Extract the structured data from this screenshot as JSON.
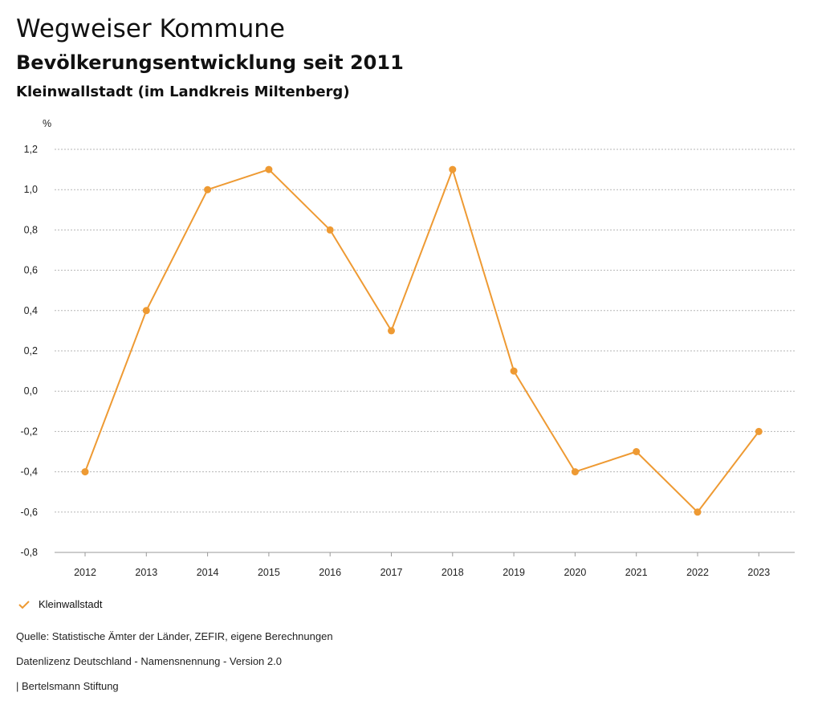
{
  "header": {
    "title": "Wegweiser Kommune",
    "subtitle": "Bevölkerungsentwicklung seit 2011",
    "region": "Kleinwallstadt (im Landkreis Miltenberg)"
  },
  "chart_data": {
    "type": "line",
    "ylabel": "%",
    "xlabel": "",
    "categories": [
      "2012",
      "2013",
      "2014",
      "2015",
      "2016",
      "2017",
      "2018",
      "2019",
      "2020",
      "2021",
      "2022",
      "2023"
    ],
    "series": [
      {
        "name": "Kleinwallstadt",
        "color": "#ee9a33",
        "values": [
          -0.4,
          0.4,
          1.0,
          1.1,
          0.8,
          0.3,
          1.1,
          0.1,
          -0.4,
          -0.3,
          -0.6,
          -0.2
        ]
      }
    ],
    "ylim": [
      -0.8,
      1.2
    ],
    "yticks": [
      1.2,
      1.0,
      0.8,
      0.6,
      0.4,
      0.2,
      0.0,
      -0.2,
      -0.4,
      -0.6,
      -0.8
    ],
    "ytick_labels": [
      "1,2",
      "1,0",
      "0,8",
      "0,6",
      "0,4",
      "0,2",
      "0,0",
      "-0,2",
      "-0,4",
      "-0,6",
      "-0,8"
    ],
    "grid": true,
    "legend_position": "bottom-left"
  },
  "legend": {
    "label": "Kleinwallstadt"
  },
  "footer": {
    "source": "Quelle: Statistische Ämter der Länder, ZEFIR, eigene Berechnungen",
    "license": "Datenlizenz Deutschland - Namensnennung - Version 2.0",
    "publisher": "| Bertelsmann Stiftung"
  }
}
